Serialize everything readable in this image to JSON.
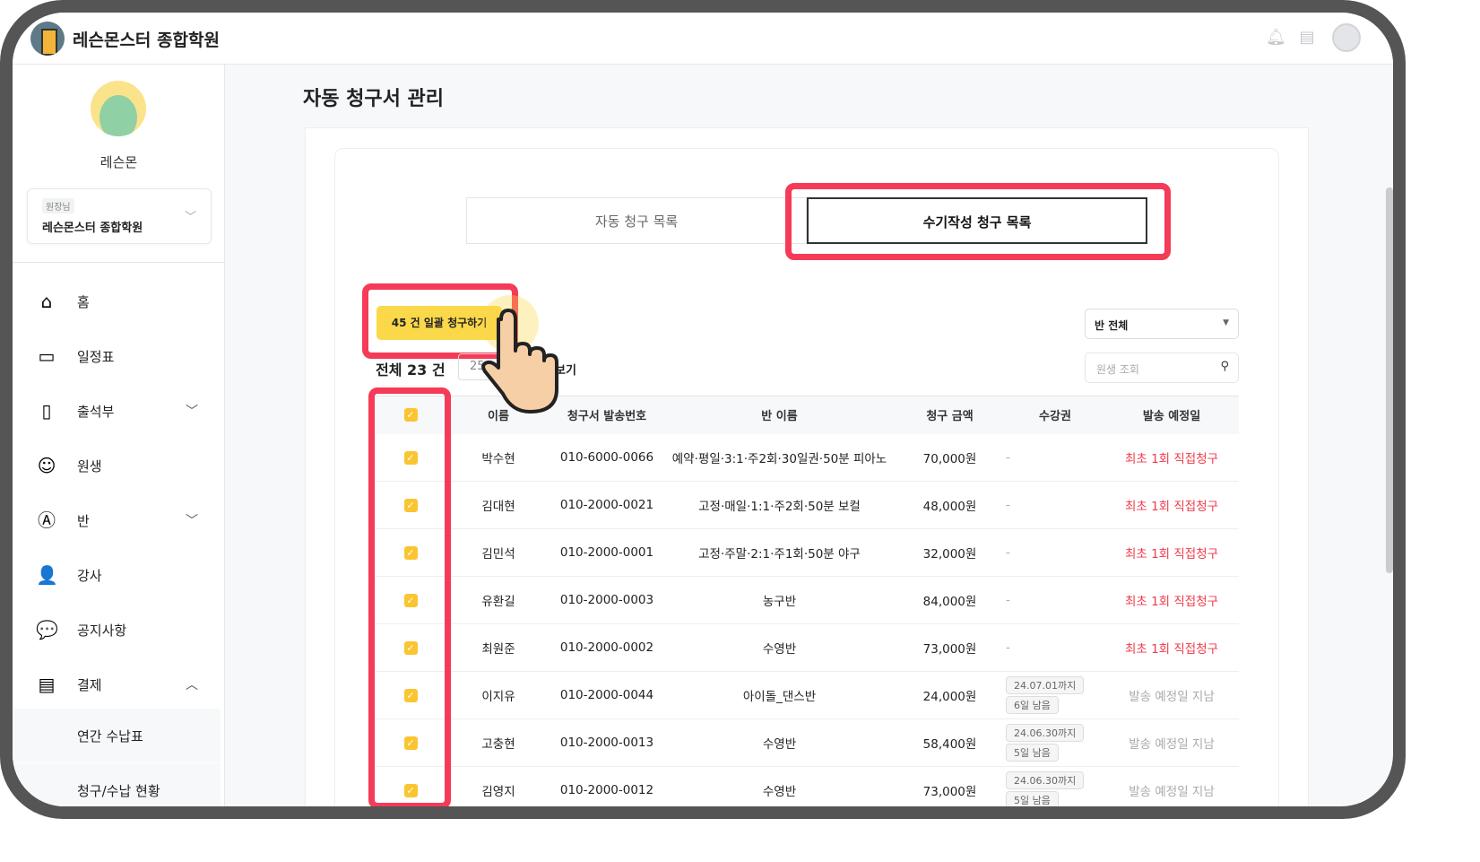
{
  "header": {
    "brand": "레슨몬스터 종합학원",
    "icons": [
      "bell-icon",
      "document-icon",
      "user-avatar-icon"
    ]
  },
  "sidebar": {
    "profile_name": "레슨몬",
    "academy_role": "원장님",
    "academy_name": "레슨몬스터 종합학원",
    "items": [
      {
        "label": "홈",
        "icon": "home-icon",
        "glyph": "⌂"
      },
      {
        "label": "일정표",
        "icon": "calendar-icon",
        "glyph": "▭"
      },
      {
        "label": "출석부",
        "icon": "book-icon",
        "glyph": "▯",
        "chev": "﹀"
      },
      {
        "label": "원생",
        "icon": "smile-icon",
        "glyph": "☺"
      },
      {
        "label": "반",
        "icon": "pencil-circle-icon",
        "glyph": "Ⓐ",
        "chev": "﹀"
      },
      {
        "label": "강사",
        "icon": "person-icon",
        "glyph": "👤"
      },
      {
        "label": "공지사항",
        "icon": "chat-bubble-icon",
        "glyph": "💬"
      },
      {
        "label": "결제",
        "icon": "card-icon",
        "glyph": "▤",
        "chev": "︿"
      }
    ],
    "subitems": [
      "연간 수납표",
      "청구/수납 현황"
    ]
  },
  "page": {
    "title": "자동 청구서 관리",
    "tabs": [
      "자동 청구 목록",
      "수기작성 청구 목록"
    ],
    "bulk_button": "45 건 일괄 청구하기",
    "total": "전체 23 건",
    "per_page": "25",
    "per_page_suffix": "보기",
    "class_filter": "반 전체",
    "search_placeholder": "원생 조회",
    "columns": [
      "이름",
      "청구서 발송번호",
      "반 이름",
      "청구 금액",
      "수강권",
      "발송 예정일"
    ],
    "rows": [
      {
        "name": "박수현",
        "phone": "010-6000-0066",
        "class": "예약·평일·3:1·주2회·30일권·50분 피아노",
        "amount": "70,000원",
        "ticket": "-",
        "send": "최초 1회 직접청구"
      },
      {
        "name": "김대현",
        "phone": "010-2000-0021",
        "class": "고정·매일·1:1·주2회·50분 보컬",
        "amount": "48,000원",
        "ticket": "-",
        "send": "최초 1회 직접청구"
      },
      {
        "name": "김민석",
        "phone": "010-2000-0001",
        "class": "고정·주말·2:1·주1회·50분 야구",
        "amount": "32,000원",
        "ticket": "-",
        "send": "최초 1회 직접청구"
      },
      {
        "name": "유환길",
        "phone": "010-2000-0003",
        "class": "농구반",
        "amount": "84,000원",
        "ticket": "-",
        "send": "최초 1회 직접청구"
      },
      {
        "name": "최원준",
        "phone": "010-2000-0002",
        "class": "수영반",
        "amount": "73,000원",
        "ticket": "-",
        "send": "최초 1회 직접청구"
      },
      {
        "name": "이지유",
        "phone": "010-2000-0044",
        "class": "아이돌_댄스반",
        "amount": "24,000원",
        "ticket": "24.07.01까지",
        "remain": "6일 남음",
        "send": "발송 예정일 지남"
      },
      {
        "name": "고충현",
        "phone": "010-2000-0013",
        "class": "수영반",
        "amount": "58,400원",
        "ticket": "24.06.30까지",
        "remain": "5일 남음",
        "send": "발송 예정일 지남"
      },
      {
        "name": "김영지",
        "phone": "010-2000-0012",
        "class": "수영반",
        "amount": "73,000원",
        "ticket": "24.06.30까지",
        "remain": "5일 남음",
        "send": "발송 예정일 지남"
      }
    ]
  },
  "colors": {
    "accent": "#fbd84a",
    "highlight": "#f53b57",
    "warning_text": "#ef3b4a"
  }
}
